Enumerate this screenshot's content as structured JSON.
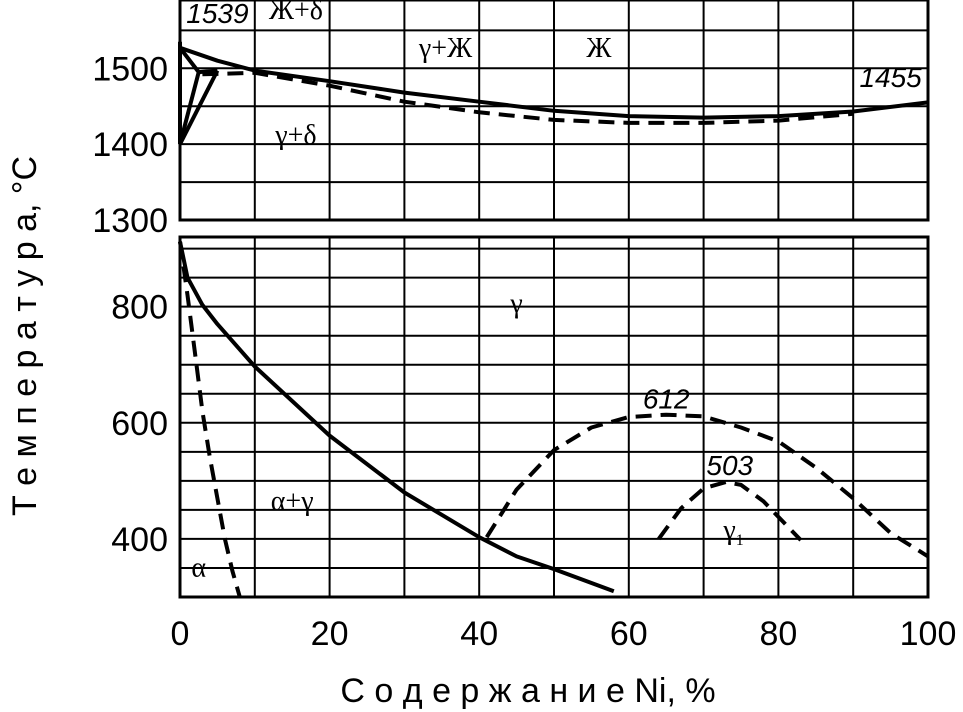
{
  "chart_data": {
    "type": "line",
    "title": "",
    "xlabel": "С о д е р ж а н и е Ni,  %",
    "ylabel": "Т е м п е р а т у р а, °С",
    "xlim": [
      0,
      100
    ],
    "x_ticks": [
      "0",
      "20",
      "40",
      "60",
      "80",
      "100"
    ],
    "upper_panel": {
      "ylim": [
        1300,
        1590
      ],
      "y_ticks": [
        {
          "value": 1300,
          "label": "1300"
        },
        {
          "value": 1400,
          "label": "1400"
        },
        {
          "value": 1500,
          "label": "1500"
        }
      ],
      "grid": true,
      "series": [
        {
          "style": "solid",
          "points": [
            [
              0,
              1527
            ],
            [
              5,
              1510
            ],
            [
              10,
              1497
            ],
            [
              20,
              1483
            ],
            [
              30,
              1468
            ],
            [
              40,
              1456
            ],
            [
              50,
              1444
            ],
            [
              60,
              1437
            ],
            [
              70,
              1435
            ],
            [
              80,
              1437
            ],
            [
              90,
              1443
            ],
            [
              100,
              1455
            ]
          ]
        },
        {
          "style": "dashed",
          "points": [
            [
              3,
              1492
            ],
            [
              10,
              1494
            ],
            [
              20,
              1477
            ],
            [
              30,
              1456
            ],
            [
              40,
              1442
            ],
            [
              50,
              1432
            ],
            [
              60,
              1428
            ],
            [
              70,
              1428
            ],
            [
              80,
              1431
            ],
            [
              90,
              1440
            ]
          ]
        },
        {
          "style": "solid",
          "points": [
            [
              0,
              1527
            ],
            [
              2.5,
              1495
            ],
            [
              5,
              1497
            ]
          ]
        },
        {
          "style": "solid",
          "points": [
            [
              0,
              1400
            ],
            [
              2.5,
              1495
            ]
          ]
        },
        {
          "style": "solid",
          "points": [
            [
              0,
              1400
            ],
            [
              5,
              1497
            ]
          ]
        },
        {
          "style": "solid",
          "points": [
            [
              0,
              1535
            ],
            [
              0,
              1400
            ]
          ]
        }
      ],
      "annotations": [
        {
          "text": "1539",
          "x": 5,
          "y": 1560
        },
        {
          "text": "1455",
          "x": 95,
          "y": 1475
        }
      ],
      "phase_labels": [
        {
          "text": "Ж+δ",
          "x": 15.5,
          "y": 1565
        },
        {
          "text": "γ+Ж",
          "x": 35.5,
          "y": 1515
        },
        {
          "text": "Ж",
          "x": 56,
          "y": 1515
        },
        {
          "text": "γ+δ",
          "x": 15.5,
          "y": 1400
        }
      ]
    },
    "lower_panel": {
      "ylim": [
        300,
        920
      ],
      "y_ticks": [
        {
          "value": 400,
          "label": "400"
        },
        {
          "value": 600,
          "label": "600"
        },
        {
          "value": 800,
          "label": "800"
        }
      ],
      "grid": true,
      "series": [
        {
          "style": "solid",
          "points": [
            [
              0,
              912
            ],
            [
              1,
              850
            ],
            [
              3,
              803
            ],
            [
              5,
              770
            ],
            [
              10,
              697
            ],
            [
              20,
              578
            ],
            [
              30,
              480
            ],
            [
              40,
              403
            ],
            [
              45,
              370
            ],
            [
              50,
              348
            ],
            [
              58,
              310
            ]
          ]
        },
        {
          "style": "dashed",
          "points": [
            [
              0,
              912
            ],
            [
              1,
              820
            ],
            [
              2,
              720
            ],
            [
              3,
              620
            ],
            [
              4,
              540
            ],
            [
              5,
              470
            ],
            [
              6,
              400
            ],
            [
              7,
              345
            ],
            [
              8,
              300
            ]
          ]
        },
        {
          "style": "dashed",
          "points": [
            [
              41,
              403
            ],
            [
              45,
              485
            ],
            [
              50,
              553
            ],
            [
              55,
              592
            ],
            [
              60,
              610
            ],
            [
              65,
              614
            ],
            [
              70,
              611
            ],
            [
              75,
              592
            ],
            [
              80,
              568
            ],
            [
              85,
              523
            ],
            [
              90,
              470
            ],
            [
              95,
              410
            ],
            [
              100,
              370
            ]
          ]
        },
        {
          "style": "dashed",
          "points": [
            [
              64,
              400
            ],
            [
              67,
              453
            ],
            [
              70,
              487
            ],
            [
              73,
              498
            ],
            [
              75,
              493
            ],
            [
              78,
              465
            ],
            [
              80,
              438
            ],
            [
              83,
              398
            ]
          ]
        }
      ],
      "annotations": [
        {
          "text": "612",
          "x": 65,
          "y": 625
        },
        {
          "text": "503",
          "x": 73.5,
          "y": 510
        }
      ],
      "phase_labels": [
        {
          "text": "γ",
          "x": 45,
          "y": 790
        },
        {
          "text": "α+γ",
          "x": 15,
          "y": 450
        },
        {
          "text": "α",
          "x": 2.5,
          "y": 335
        }
      ],
      "gamma1_label": {
        "base": "γ",
        "sub": "1",
        "x": 74,
        "y": 400
      }
    }
  }
}
